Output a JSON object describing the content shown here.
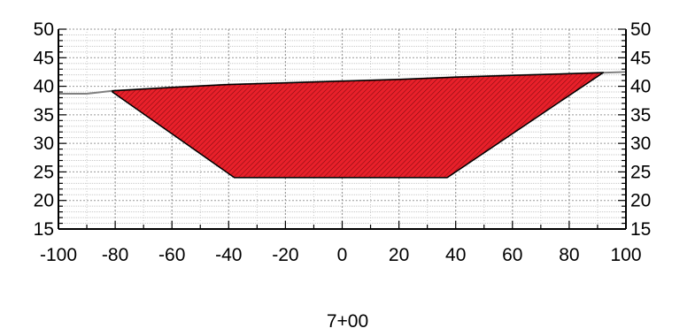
{
  "chart_data": {
    "type": "area",
    "title": "",
    "xlabel": "",
    "ylabel": "",
    "station_label": "7+00",
    "xlim": [
      -100,
      100
    ],
    "ylim": [
      15,
      50
    ],
    "x_ticks": [
      -100,
      -80,
      -60,
      -40,
      -20,
      0,
      20,
      40,
      60,
      80,
      100
    ],
    "y_ticks": [
      15,
      20,
      25,
      30,
      35,
      40,
      45,
      50
    ],
    "x_tick_labels": [
      "-100",
      "-80",
      "-60",
      "-40",
      "-20",
      "0",
      "20",
      "40",
      "60",
      "80",
      "100"
    ],
    "y_tick_labels": [
      "15",
      "20",
      "25",
      "30",
      "35",
      "40",
      "45",
      "50"
    ],
    "grid": true,
    "minor_grid_step": {
      "x": 10,
      "y": 1
    },
    "series": [
      {
        "role": "ground-line",
        "color": "#808080",
        "x": [
          -100,
          -90,
          -81,
          -60,
          -40,
          -20,
          0,
          20,
          40,
          60,
          80,
          93,
          100
        ],
        "y": [
          38.7,
          38.7,
          39.2,
          39.8,
          40.3,
          40.6,
          40.9,
          41.2,
          41.6,
          41.9,
          42.2,
          42.4,
          42.5
        ]
      },
      {
        "role": "cut-section",
        "fill": "#e8202a",
        "stroke": "#000000",
        "x": [
          -81,
          -38,
          37,
          92,
          80,
          60,
          40,
          20,
          0,
          -20,
          -40,
          -60,
          -81
        ],
        "y": [
          39.0,
          24.0,
          24.0,
          42.4,
          42.2,
          41.9,
          41.6,
          41.2,
          40.9,
          40.6,
          40.3,
          39.8,
          39.2
        ]
      }
    ]
  },
  "colors": {
    "grid_major": "#9a9a9a",
    "grid_minor": "#c8c8c8",
    "section_fill": "#e8202a",
    "hatch": "#7a0a0e"
  }
}
